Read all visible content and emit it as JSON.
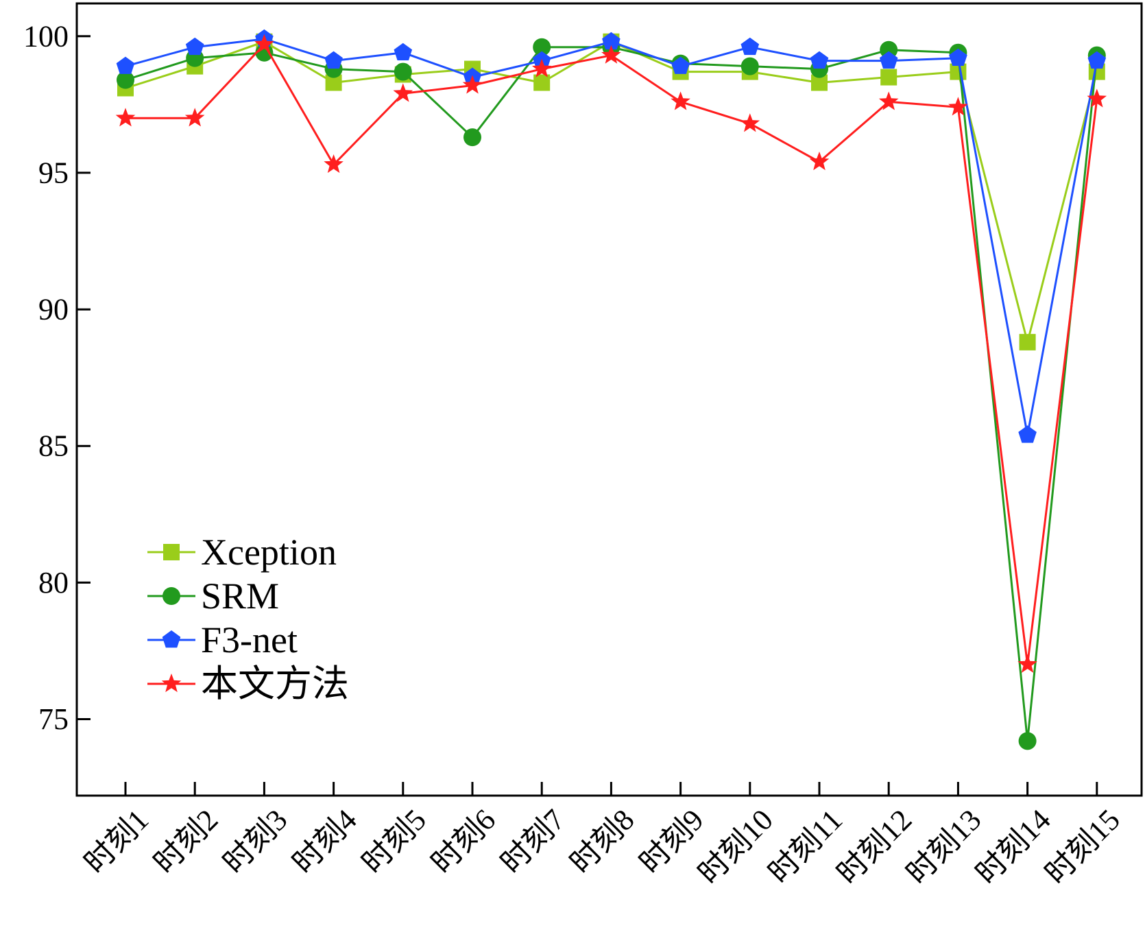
{
  "chart_data": {
    "type": "line",
    "title": "",
    "xlabel": "",
    "ylabel": "",
    "ylim": [
      72.2,
      101.2
    ],
    "yticks": [
      75,
      80,
      85,
      90,
      95,
      100
    ],
    "grid": false,
    "legend_position": "lower-left",
    "categories": [
      "时刻1",
      "时刻2",
      "时刻3",
      "时刻4",
      "时刻5",
      "时刻6",
      "时刻7",
      "时刻8",
      "时刻9",
      "时刻10",
      "时刻11",
      "时刻12",
      "时刻13",
      "时刻14",
      "时刻15"
    ],
    "series": [
      {
        "name": "Xception",
        "color": "#9acd1a",
        "marker": "square",
        "values": [
          98.1,
          98.9,
          99.8,
          98.3,
          98.6,
          98.8,
          98.3,
          99.8,
          98.7,
          98.7,
          98.3,
          98.5,
          98.7,
          88.8,
          98.7
        ]
      },
      {
        "name": "SRM",
        "color": "#229a1e",
        "marker": "circle",
        "values": [
          98.4,
          99.2,
          99.4,
          98.8,
          98.7,
          96.3,
          99.6,
          99.6,
          99.0,
          98.9,
          98.8,
          99.5,
          99.4,
          74.2,
          99.3
        ]
      },
      {
        "name": "F3-net",
        "color": "#1e50ff",
        "marker": "pentagon",
        "values": [
          98.9,
          99.6,
          99.9,
          99.1,
          99.4,
          98.5,
          99.1,
          99.8,
          98.9,
          99.6,
          99.1,
          99.1,
          99.2,
          85.4,
          99.1
        ]
      },
      {
        "name": "本文方法",
        "color": "#ff1e1e",
        "marker": "star",
        "values": [
          97.0,
          97.0,
          99.7,
          95.3,
          97.9,
          98.2,
          98.8,
          99.3,
          97.6,
          96.8,
          95.4,
          97.6,
          97.4,
          77.0,
          97.7
        ]
      }
    ]
  }
}
